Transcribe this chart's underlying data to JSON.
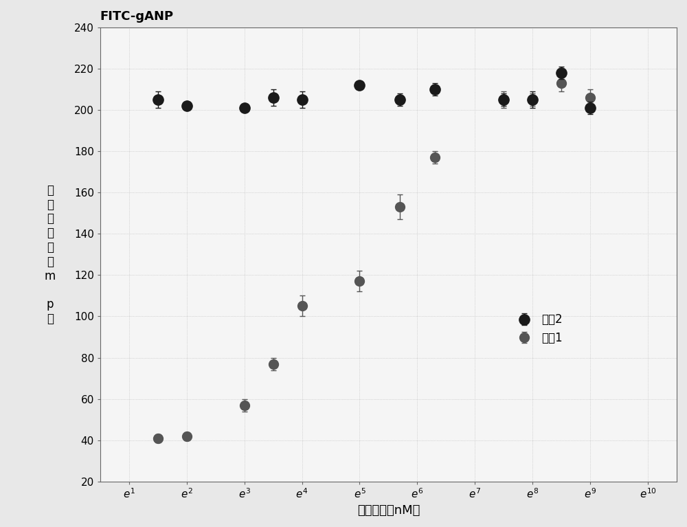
{
  "title": "FITC-gANP",
  "xlabel": "样品浓度（nM）",
  "ylabel_lines": [
    "极",
    "化",
    "荧",
    "光",
    "值",
    "（",
    "m",
    "",
    "p",
    "（"
  ],
  "ylim": [
    20,
    240
  ],
  "yticks": [
    20,
    40,
    60,
    80,
    100,
    120,
    140,
    160,
    180,
    200,
    220,
    240
  ],
  "sample2_n": [
    1.5,
    2,
    3,
    3.5,
    4,
    5,
    5.7,
    6.3,
    7.5,
    8,
    8.5,
    9
  ],
  "sample2_y": [
    205,
    202,
    201,
    206,
    205,
    212,
    205,
    210,
    205,
    205,
    218,
    201
  ],
  "sample2_yerr": [
    4,
    2,
    1,
    4,
    4,
    2,
    3,
    3,
    3,
    4,
    3,
    3
  ],
  "sample1_n": [
    1.5,
    2,
    3,
    3.5,
    4,
    5,
    5.7,
    6.3,
    7.5,
    8,
    8.5,
    9
  ],
  "sample1_y": [
    41,
    42,
    57,
    77,
    105,
    117,
    153,
    177,
    205,
    205,
    213,
    206
  ],
  "sample1_yerr": [
    2,
    2,
    3,
    3,
    5,
    5,
    6,
    3,
    4,
    3,
    4,
    4
  ],
  "color_sample2": "#1a1a1a",
  "color_sample1": "#555555",
  "marker_size": 11,
  "legend_labels": [
    "样品2",
    "样品1"
  ],
  "background_color": "#e8e8e8",
  "plot_bg_color": "#f5f5f5",
  "xtick_ns": [
    1,
    2,
    3,
    4,
    5,
    6,
    7,
    8,
    9,
    10
  ],
  "xlim_n": [
    0.5,
    10.5
  ]
}
